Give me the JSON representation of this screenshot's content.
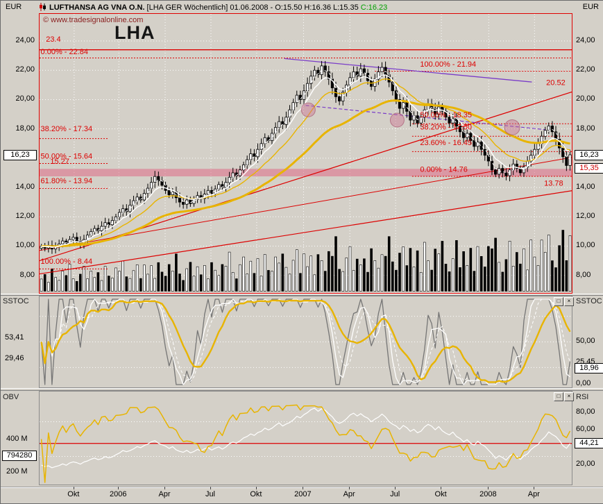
{
  "units": {
    "left": "EUR",
    "right": "EUR"
  },
  "title": {
    "name": "LUFTHANSA AG VNA O.N.",
    "detail": " [LHA GER  Wöchentlich] 01.06.2008 - O:15.50 H:16.36 L:15.35 ",
    "close": "C:16.23"
  },
  "watermark": "© www.tradesignalonline.com",
  "symbol": "LHA",
  "icons": {
    "panel_restore": "□",
    "panel_close": "×"
  },
  "colors": {
    "up": "#ffffff",
    "down": "#000000",
    "ma": "#e8b400",
    "red": "#dd0000",
    "purple": "#7a3cc8",
    "band": "rgba(224,96,128,0.5)",
    "grid": "#ffffff",
    "stoch_k": "#757575",
    "bg": "#d4d0c8",
    "circle_fill": "rgba(205,115,145,0.45)",
    "circle_stroke": "rgba(160,70,100,0.6)"
  },
  "x_axis": {
    "labels": [
      {
        "t": "Okt",
        "f": 0.065
      },
      {
        "t": "2006",
        "f": 0.149
      },
      {
        "t": "Apr",
        "f": 0.236
      },
      {
        "t": "Jul",
        "f": 0.322
      },
      {
        "t": "Okt",
        "f": 0.408
      },
      {
        "t": "2007",
        "f": 0.496
      },
      {
        "t": "Apr",
        "f": 0.583
      },
      {
        "t": "Jul",
        "f": 0.669
      },
      {
        "t": "Okt",
        "f": 0.755
      },
      {
        "t": "2008",
        "f": 0.844
      },
      {
        "t": "Apr",
        "f": 0.93
      }
    ]
  },
  "price_axis": {
    "ticks": [
      8,
      10,
      12,
      14,
      18,
      20,
      22,
      24
    ],
    "grid_ticks": [
      8,
      10,
      12,
      14,
      16,
      18,
      20,
      22,
      24
    ],
    "current_left": "16,23",
    "current_right": "16,23",
    "low_right": "15,35"
  },
  "chart_data": [
    {
      "type": "candlestick",
      "name": "LUFTHANSA AG VNA O.N. weekly",
      "ylim": [
        6.8,
        25.85
      ],
      "closes": [
        10.0,
        9.85,
        10.05,
        9.8,
        9.95,
        10.15,
        10.35,
        10.2,
        10.45,
        10.6,
        10.35,
        10.15,
        10.45,
        10.75,
        11.0,
        11.2,
        11.05,
        11.35,
        11.6,
        11.45,
        11.75,
        12.0,
        12.3,
        12.55,
        12.35,
        12.8,
        13.1,
        13.35,
        13.15,
        13.6,
        13.95,
        14.35,
        14.75,
        14.45,
        14.15,
        13.8,
        13.5,
        13.7,
        13.3,
        13.0,
        12.85,
        13.15,
        12.9,
        13.2,
        13.45,
        13.25,
        13.55,
        13.8,
        13.6,
        13.9,
        14.2,
        14.0,
        14.35,
        14.7,
        15.0,
        14.8,
        15.2,
        15.55,
        15.9,
        16.3,
        16.1,
        16.6,
        17.0,
        17.4,
        17.2,
        17.7,
        18.1,
        18.5,
        18.3,
        18.8,
        19.3,
        19.8,
        20.3,
        20.0,
        20.6,
        21.1,
        21.6,
        22.0,
        21.7,
        22.3,
        21.9,
        21.4,
        20.8,
        20.2,
        19.9,
        20.5,
        21.0,
        21.5,
        21.9,
        21.6,
        22.1,
        21.8,
        21.3,
        20.9,
        21.4,
        21.9,
        22.2,
        21.7,
        21.2,
        20.6,
        20.0,
        19.4,
        19.8,
        19.2,
        18.6,
        18.9,
        18.4,
        18.8,
        19.3,
        19.7,
        19.4,
        19.0,
        19.5,
        19.2,
        18.8,
        18.4,
        18.7,
        18.2,
        17.8,
        17.4,
        17.7,
        17.2,
        16.8,
        17.1,
        16.6,
        16.2,
        15.8,
        15.2,
        14.9,
        15.3,
        15.0,
        14.8,
        15.2,
        15.6,
        15.3,
        15.0,
        15.4,
        15.8,
        16.2,
        16.6,
        17.0,
        17.5,
        17.9,
        18.2,
        17.8,
        17.3,
        16.7,
        16.1,
        15.5,
        16.23
      ],
      "volume_pattern": [
        7,
        10,
        5,
        12,
        8,
        6,
        11,
        9,
        14,
        7,
        5,
        9,
        12,
        6,
        10
      ],
      "overlays": {
        "slow": 40,
        "mid": 15,
        "fast": 7,
        "sma": 3
      },
      "band": {
        "from": 14.76,
        "to": 15.27
      },
      "last": {
        "open": 15.5,
        "high": 16.36,
        "low": 15.35,
        "close": 16.23
      },
      "hlines": [
        {
          "p": 23.4,
          "x0": 0,
          "x1": 1,
          "c": "#dd0000",
          "w": 1.3,
          "dash": null
        },
        {
          "p": 22.84,
          "x0": 0,
          "x1": 1,
          "c": "#dd0000",
          "w": 1,
          "dash": "2,2"
        },
        {
          "p": 21.94,
          "x0": 0.63,
          "x1": 1,
          "c": "#dd0000",
          "w": 1,
          "dash": "2,2"
        },
        {
          "p": 18.35,
          "x0": 0.7,
          "x1": 1,
          "c": "#dd0000",
          "w": 1,
          "dash": "2,2"
        },
        {
          "p": 17.5,
          "x0": 0.7,
          "x1": 1,
          "c": "#dd0000",
          "w": 1,
          "dash": "2,2"
        },
        {
          "p": 17.34,
          "x0": 0,
          "x1": 0.13,
          "c": "#dd0000",
          "w": 1,
          "dash": "2,2"
        },
        {
          "p": 16.45,
          "x0": 0.7,
          "x1": 1,
          "c": "#dd0000",
          "w": 1,
          "dash": "2,2"
        },
        {
          "p": 15.64,
          "x0": 0,
          "x1": 0.13,
          "c": "#dd0000",
          "w": 1,
          "dash": "2,2"
        },
        {
          "p": 14.76,
          "x0": 0.7,
          "x1": 1,
          "c": "#dd0000",
          "w": 1,
          "dash": "2,2"
        },
        {
          "p": 13.94,
          "x0": 0,
          "x1": 0.13,
          "c": "#dd0000",
          "w": 1,
          "dash": "2,2"
        },
        {
          "p": 8.44,
          "x0": 0,
          "x1": 0.13,
          "c": "#dd0000",
          "w": 1,
          "dash": "2,2"
        }
      ],
      "trendlines": [
        {
          "x0": 0.0,
          "p0": 9.0,
          "x1": 1.0,
          "p1": 20.52,
          "c": "#dd0000",
          "w": 1.2,
          "dash": null
        },
        {
          "x0": 0.0,
          "p0": 9.7,
          "x1": 1.0,
          "p1": 16.05,
          "c": "#dd0000",
          "w": 1,
          "dash": null
        },
        {
          "x0": 0.0,
          "p0": 8.1,
          "x1": 1.0,
          "p1": 13.78,
          "c": "#dd0000",
          "w": 1.2,
          "dash": null
        },
        {
          "x0": 0.46,
          "p0": 22.8,
          "x1": 0.925,
          "p1": 21.2,
          "c": "#7a3cc8",
          "w": 1.3,
          "dash": null
        },
        {
          "x0": 0.5,
          "p0": 19.6,
          "x1": 0.95,
          "p1": 17.95,
          "c": "#7a3cc8",
          "w": 1.2,
          "dash": "5,3"
        }
      ],
      "circles": [
        {
          "x": 0.505,
          "p": 19.3,
          "r": 10
        },
        {
          "x": 0.672,
          "p": 18.6,
          "r": 10
        },
        {
          "x": 0.888,
          "p": 18.1,
          "r": 11
        }
      ],
      "texts": [
        {
          "t": "23.4",
          "x": 0.012,
          "p": 23.95
        },
        {
          "t": "0.00% - 22.84",
          "x": 0.002,
          "p": 23.1
        },
        {
          "t": "100.00% - 21.94",
          "x": 0.715,
          "p": 22.25
        },
        {
          "t": "20.52",
          "x": 0.952,
          "p": 21.0
        },
        {
          "t": "50.00% - 18.35",
          "x": 0.715,
          "p": 18.8
        },
        {
          "t": "38.20% - 17.50",
          "x": 0.715,
          "p": 17.95
        },
        {
          "t": "38.20% - 17.34",
          "x": 0.002,
          "p": 17.85
        },
        {
          "t": "23.60% - 16.45",
          "x": 0.715,
          "p": 16.9
        },
        {
          "t": "50.00% - 15.64",
          "x": 0.002,
          "p": 15.98
        },
        {
          "t": "15.27",
          "x": 0.02,
          "p": 15.62
        },
        {
          "t": "0.00% - 14.76",
          "x": 0.715,
          "p": 15.08
        },
        {
          "t": "61.80% - 13.94",
          "x": 0.002,
          "p": 14.28
        },
        {
          "t": "13.78",
          "x": 0.948,
          "p": 14.12
        },
        {
          "t": "100.00% - 8.44",
          "x": 0.002,
          "p": 8.78
        }
      ]
    },
    {
      "type": "line",
      "name": "SSTOC",
      "label_left": "SSTOC",
      "label_right": "SSTOC",
      "ylim": [
        0,
        100
      ],
      "period": 10,
      "guides": [
        80,
        50,
        20
      ],
      "left_values": [
        {
          "t": "53,41",
          "v": 53.41
        },
        {
          "t": "29,46",
          "v": 29.46
        }
      ],
      "right_ticks": [
        {
          "t": "50,00",
          "v": 50
        },
        {
          "t": "25,45",
          "v": 25.45
        },
        {
          "t": "0,00",
          "v": 0
        }
      ],
      "current": {
        "t": "18,96",
        "v": 18.96
      }
    },
    {
      "type": "line",
      "name": "OBV / RSI",
      "label_left": "OBV",
      "label_right": "RSI",
      "obv_ticks": [
        {
          "t": "400 M",
          "v": 400
        },
        {
          "t": "200 M",
          "v": 200
        }
      ],
      "obv_current": {
        "t": "794280",
        "v": 300
      },
      "rsi_ticks": [
        {
          "t": "80,00",
          "v": 80
        },
        {
          "t": "60,00",
          "v": 60
        },
        {
          "t": "20,00",
          "v": 20
        }
      ],
      "rsi_current": {
        "t": "44,21",
        "v": 44.21
      },
      "rsi_redline": 45,
      "rsi_guides": [
        70,
        30
      ],
      "rsi_period": 14
    }
  ]
}
